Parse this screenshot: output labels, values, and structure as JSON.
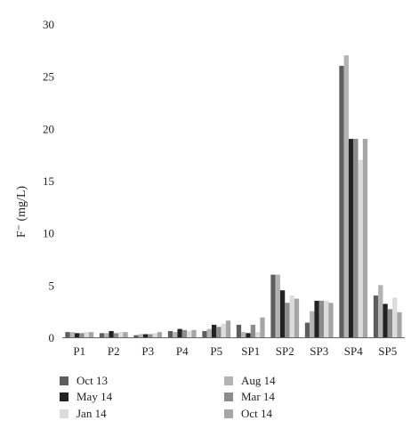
{
  "chart_data": {
    "type": "bar",
    "ylabel": "F⁻ (mg/L)",
    "ylim": [
      0,
      30
    ],
    "yticks": [
      0,
      5,
      10,
      15,
      20,
      25,
      30
    ],
    "grid": false,
    "legend_position": "bottom",
    "categories": [
      "P1",
      "P2",
      "P3",
      "P4",
      "P5",
      "SP1",
      "SP2",
      "SP3",
      "SP4",
      "SP5"
    ],
    "series": [
      {
        "name": "Oct 13",
        "color": "#5e5e5e",
        "values": [
          0.5,
          0.4,
          0.2,
          0.6,
          0.6,
          1.2,
          6.0,
          1.4,
          26.0,
          4.0
        ]
      },
      {
        "name": "Aug 14",
        "color": "#b3b3b3",
        "values": [
          0.5,
          0.4,
          0.3,
          0.5,
          0.8,
          0.5,
          6.0,
          2.5,
          27.0,
          5.0
        ]
      },
      {
        "name": "May 14",
        "color": "#222222",
        "values": [
          0.4,
          0.6,
          0.3,
          0.8,
          1.2,
          0.4,
          4.5,
          3.5,
          19.0,
          3.2
        ]
      },
      {
        "name": "Mar 14",
        "color": "#8c8c8c",
        "values": [
          0.4,
          0.4,
          0.3,
          0.7,
          1.0,
          1.2,
          3.3,
          3.5,
          19.0,
          2.7
        ]
      },
      {
        "name": "Jan 14",
        "color": "#dcdcdc",
        "values": [
          0.5,
          0.5,
          0.4,
          0.6,
          1.3,
          0.5,
          4.0,
          3.5,
          17.0,
          3.8
        ]
      },
      {
        "name": "Oct 14",
        "color": "#a6a6a6",
        "values": [
          0.5,
          0.5,
          0.5,
          0.7,
          1.6,
          1.9,
          3.7,
          3.3,
          19.0,
          2.4
        ]
      }
    ]
  }
}
